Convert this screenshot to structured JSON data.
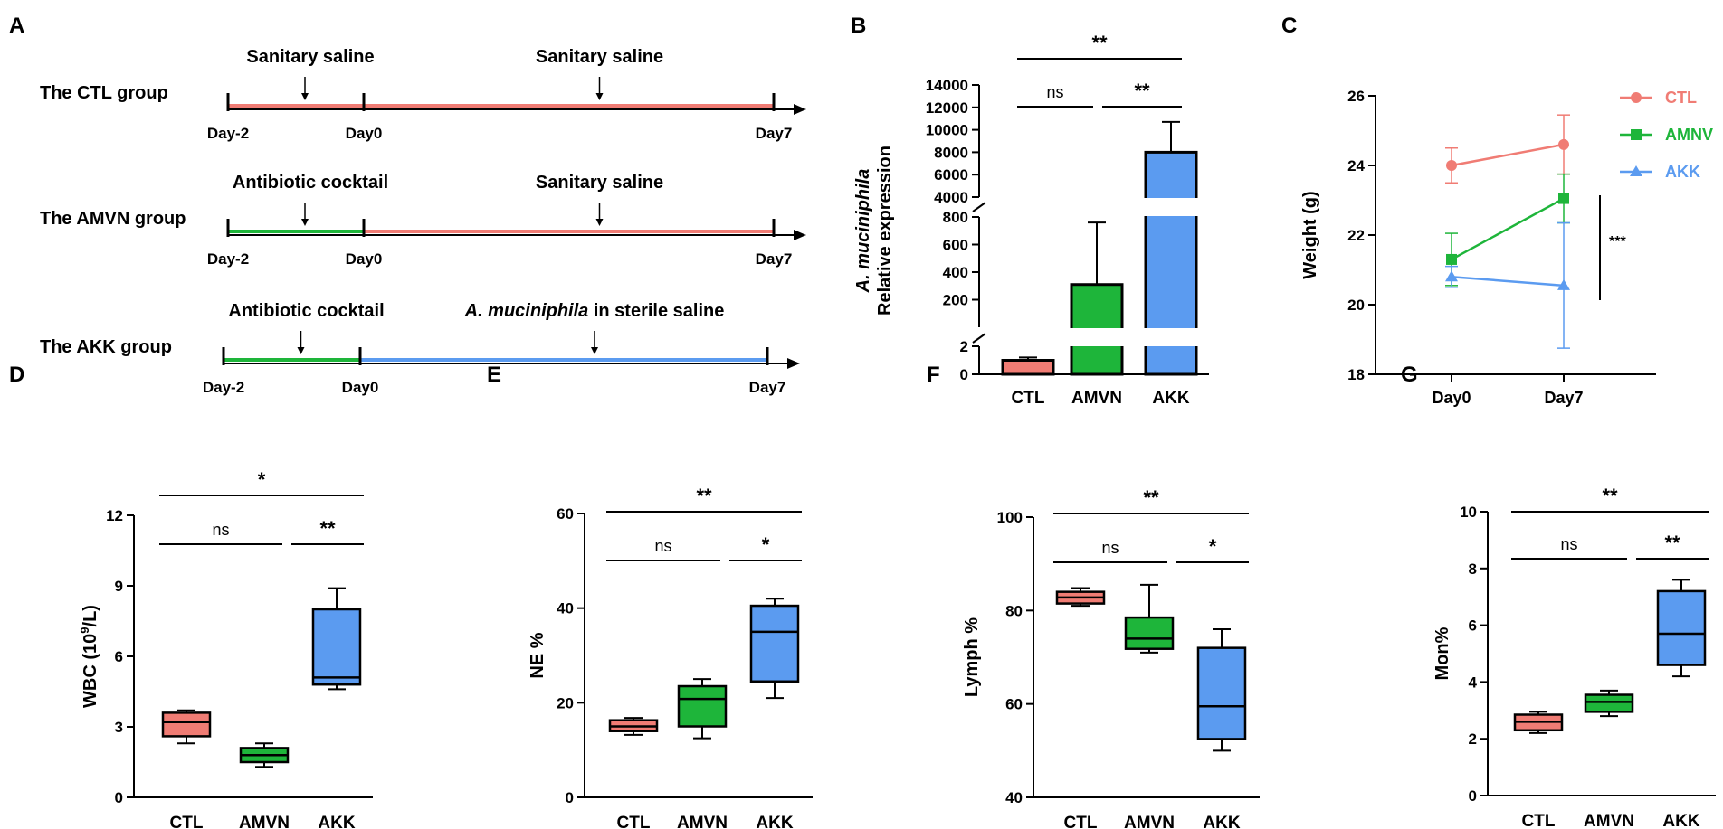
{
  "colors": {
    "ctl": "#F07C74",
    "amvn": "#1EB53A",
    "akk": "#5B9BF0",
    "axis": "#000000"
  },
  "panel_labels": {
    "a": "A",
    "b": "B",
    "c": "C",
    "d": "D",
    "e": "E",
    "f": "F",
    "g": "G"
  },
  "timeline": {
    "groups": [
      {
        "name": "The CTL group",
        "phase1_label": "Sanitary saline",
        "phase2_label": "Sanitary saline",
        "phase1_color": "ctl",
        "phase2_color": "ctl",
        "start": "Day-2",
        "mid": "Day0",
        "end": "Day7"
      },
      {
        "name": "The AMVN group",
        "phase1_label": "Antibiotic cocktail",
        "phase2_label": "Sanitary saline",
        "phase1_color": "amvn",
        "phase2_color": "ctl",
        "start": "Day-2",
        "mid": "Day0",
        "end": "Day7"
      },
      {
        "name": "The AKK group",
        "phase1_label": "Antibiotic cocktail",
        "phase2_label_italic": "A. muciniphila",
        "phase2_label_rest": " in sterile saline",
        "phase1_color": "amvn",
        "phase2_color": "akk",
        "start": "Day-2",
        "mid": "Day0",
        "end": "Day7"
      }
    ]
  },
  "chart_data": [
    {
      "id": "B",
      "type": "bar",
      "ylabel_italic": "A. muciniphila",
      "ylabel": "Relative expression",
      "categories": [
        "CTL",
        "AMVN",
        "AKK"
      ],
      "values": [
        1,
        310,
        8000
      ],
      "errors": [
        0.2,
        450,
        2700
      ],
      "broken_axis_segments": [
        {
          "range": [
            0,
            2
          ],
          "ticks": [
            "0",
            "2"
          ]
        },
        {
          "range": [
            0,
            800
          ],
          "ticks": [
            "200",
            "400",
            "600",
            "800"
          ]
        },
        {
          "range": [
            4000,
            14000
          ],
          "ticks": [
            "4000",
            "6000",
            "8000",
            "10000",
            "12000",
            "14000"
          ]
        }
      ],
      "significance": [
        {
          "from": 0,
          "to": 2,
          "label": "**"
        },
        {
          "from": 0,
          "to": 1,
          "label": "ns"
        },
        {
          "from": 1,
          "to": 2,
          "label": "**"
        }
      ]
    },
    {
      "id": "C",
      "type": "line",
      "ylabel": "Weight (g)",
      "x": [
        "Day0",
        "Day7"
      ],
      "ylim": [
        18,
        26
      ],
      "yticks": [
        "18",
        "20",
        "22",
        "24",
        "26"
      ],
      "series": [
        {
          "name": "CTL",
          "color": "ctl",
          "marker": "circle",
          "values": [
            24.0,
            24.6
          ],
          "errors": [
            0.5,
            0.85
          ]
        },
        {
          "name": "AMNV",
          "color": "amvn",
          "marker": "square",
          "values": [
            21.3,
            23.05
          ],
          "errors": [
            0.75,
            0.7
          ]
        },
        {
          "name": "AKK",
          "color": "akk",
          "marker": "triangle",
          "values": [
            20.8,
            20.55
          ],
          "errors": [
            0.3,
            1.8
          ]
        }
      ],
      "annotation": "***"
    },
    {
      "id": "D",
      "type": "box",
      "ylabel": "WBC (10",
      "ylabel_sup": "9",
      "ylabel_tail": "/L)",
      "ylim": [
        0,
        12
      ],
      "yticks": [
        "0",
        "3",
        "6",
        "9",
        "12"
      ],
      "categories": [
        "CTL",
        "AMVN",
        "AKK"
      ],
      "boxes": [
        {
          "min": 2.3,
          "q1": 2.6,
          "median": 3.2,
          "q3": 3.6,
          "max": 3.7
        },
        {
          "min": 1.3,
          "q1": 1.5,
          "median": 1.8,
          "q3": 2.1,
          "max": 2.3
        },
        {
          "min": 4.6,
          "q1": 4.8,
          "median": 5.1,
          "q3": 8.0,
          "max": 8.9
        }
      ],
      "significance": [
        {
          "from": 0,
          "to": 2,
          "label": "*"
        },
        {
          "from": 0,
          "to": 1,
          "label": "ns"
        },
        {
          "from": 1,
          "to": 2,
          "label": "**"
        }
      ]
    },
    {
      "id": "E",
      "type": "box",
      "ylabel": "NE %",
      "ylim": [
        0,
        60
      ],
      "yticks": [
        "0",
        "20",
        "40",
        "60"
      ],
      "categories": [
        "CTL",
        "AMVN",
        "AKK"
      ],
      "boxes": [
        {
          "min": 13.2,
          "q1": 14.0,
          "median": 15.0,
          "q3": 16.3,
          "max": 16.8
        },
        {
          "min": 12.5,
          "q1": 15.0,
          "median": 20.8,
          "q3": 23.5,
          "max": 25.0
        },
        {
          "min": 21.0,
          "q1": 24.5,
          "median": 35.0,
          "q3": 40.5,
          "max": 42.0
        }
      ],
      "significance": [
        {
          "from": 0,
          "to": 2,
          "label": "**"
        },
        {
          "from": 0,
          "to": 1,
          "label": "ns"
        },
        {
          "from": 1,
          "to": 2,
          "label": "*"
        }
      ]
    },
    {
      "id": "F",
      "type": "box",
      "ylabel": "Lymph %",
      "ylim": [
        40,
        100
      ],
      "yticks": [
        "40",
        "60",
        "80",
        "100"
      ],
      "categories": [
        "CTL",
        "AMVN",
        "AKK"
      ],
      "boxes": [
        {
          "min": 81.0,
          "q1": 81.5,
          "median": 82.8,
          "q3": 84.0,
          "max": 84.8
        },
        {
          "min": 71.0,
          "q1": 71.8,
          "median": 74.0,
          "q3": 78.5,
          "max": 85.5
        },
        {
          "min": 50.0,
          "q1": 52.5,
          "median": 59.5,
          "q3": 72.0,
          "max": 76.0
        }
      ],
      "significance": [
        {
          "from": 0,
          "to": 2,
          "label": "**"
        },
        {
          "from": 0,
          "to": 1,
          "label": "ns"
        },
        {
          "from": 1,
          "to": 2,
          "label": "*"
        }
      ]
    },
    {
      "id": "G",
      "type": "box",
      "ylabel": "Mon%",
      "ylim": [
        0,
        10
      ],
      "yticks": [
        "0",
        "2",
        "4",
        "6",
        "8",
        "10"
      ],
      "categories": [
        "CTL",
        "AMVN",
        "AKK"
      ],
      "boxes": [
        {
          "min": 2.2,
          "q1": 2.3,
          "median": 2.6,
          "q3": 2.85,
          "max": 2.95
        },
        {
          "min": 2.8,
          "q1": 2.95,
          "median": 3.3,
          "q3": 3.55,
          "max": 3.7
        },
        {
          "min": 4.2,
          "q1": 4.6,
          "median": 5.7,
          "q3": 7.2,
          "max": 7.6
        }
      ],
      "significance": [
        {
          "from": 0,
          "to": 2,
          "label": "**"
        },
        {
          "from": 0,
          "to": 1,
          "label": "ns"
        },
        {
          "from": 1,
          "to": 2,
          "label": "**"
        }
      ]
    }
  ]
}
